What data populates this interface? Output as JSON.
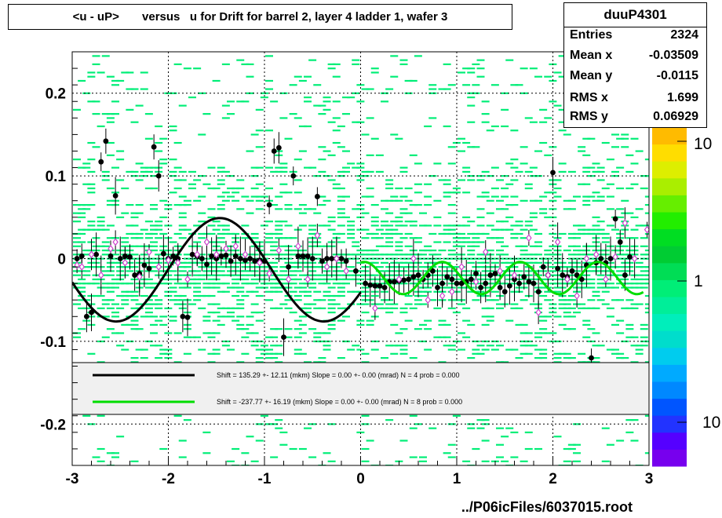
{
  "title": "<u - uP>       versus   u for Drift for barrel 2, layer 4 ladder 1, wafer 3",
  "stats": {
    "name": "duuP4301",
    "rows": [
      {
        "k": "Entries",
        "v": "2324"
      },
      {
        "k": "Mean x",
        "v": "-0.03509"
      },
      {
        "k": "Mean y",
        "v": "-0.0115"
      },
      {
        "k": "RMS x",
        "v": "1.699"
      },
      {
        "k": "RMS y",
        "v": "0.06929"
      }
    ]
  },
  "footer": "../P06icFiles/6037015.root",
  "palette_labels": [
    "10",
    "1",
    "10"
  ],
  "colors": {
    "fit1": "#000000",
    "fit2": "#00dd00",
    "hist_cells": "#00ee77",
    "open_markers": "#cc44cc"
  },
  "chart_data": {
    "type": "scatter",
    "title": "<u - uP>       versus   u for Drift for barrel 2, layer 4 ladder 1, wafer 3",
    "xlim": [
      -3,
      3
    ],
    "ylim": [
      -0.25,
      0.25
    ],
    "x_ticks": [
      "-3",
      "-2",
      "-1",
      "0",
      "1",
      "2",
      "3"
    ],
    "y_ticks": [
      "0.2",
      "0.1",
      "0",
      "-0.1",
      "-0.2"
    ],
    "grid": true,
    "legend": [
      {
        "text": "Shift =   135.29 +- 12.11 (mkm) Slope =     0.00 +- 0.00 (mrad)  N = 4 prob = 0.000",
        "color": "#000000"
      },
      {
        "text": "Shift =   -237.77 +- 16.19 (mkm) Slope =     0.00 +- 0.00 (mrad)  N = 8 prob = 0.000",
        "color": "#00dd00"
      }
    ],
    "profile_black": [
      [
        -2.95,
        0.0
      ],
      [
        -2.9,
        0.003
      ],
      [
        -2.85,
        -0.07
      ],
      [
        -2.8,
        -0.065
      ],
      [
        -2.75,
        0.005
      ],
      [
        -2.7,
        0.117
      ],
      [
        -2.65,
        0.142
      ],
      [
        -2.6,
        0.003
      ],
      [
        -2.55,
        0.076
      ],
      [
        -2.5,
        0.0
      ],
      [
        -2.45,
        0.003
      ],
      [
        -2.4,
        0.002
      ],
      [
        -2.35,
        -0.02
      ],
      [
        -2.3,
        -0.018
      ],
      [
        -2.25,
        -0.008
      ],
      [
        -2.2,
        -0.012
      ],
      [
        -2.15,
        0.135
      ],
      [
        -2.1,
        0.1
      ],
      [
        -2.05,
        0.006
      ],
      [
        -2.0,
        0.0
      ],
      [
        -1.95,
        0.003
      ],
      [
        -1.9,
        0.0
      ],
      [
        -1.85,
        -0.07
      ],
      [
        -1.8,
        -0.071
      ],
      [
        -1.75,
        0.005
      ],
      [
        -1.7,
        0.003
      ],
      [
        -1.65,
        0.0
      ],
      [
        -1.6,
        -0.007
      ],
      [
        -1.55,
        0.003
      ],
      [
        -1.5,
        0.0
      ],
      [
        -1.45,
        0.003
      ],
      [
        -1.4,
        0.004
      ],
      [
        -1.35,
        -0.003
      ],
      [
        -1.3,
        0.003
      ],
      [
        -1.25,
        0.0
      ],
      [
        -1.2,
        -0.002
      ],
      [
        -1.15,
        0.0
      ],
      [
        -1.1,
        -0.003
      ],
      [
        -1.05,
        -0.002
      ],
      [
        -1.0,
        -0.003
      ],
      [
        -0.95,
        0.065
      ],
      [
        -0.9,
        0.13
      ],
      [
        -0.85,
        0.134
      ],
      [
        -0.8,
        -0.095
      ],
      [
        -0.75,
        -0.01
      ],
      [
        -0.7,
        0.1
      ],
      [
        -0.65,
        0.003
      ],
      [
        -0.6,
        0.003
      ],
      [
        -0.55,
        0.003
      ],
      [
        -0.5,
        0.0
      ],
      [
        -0.45,
        0.075
      ],
      [
        -0.4,
        -0.003
      ],
      [
        -0.35,
        0.0
      ],
      [
        -0.3,
        0.0
      ],
      [
        -0.25,
        0.0
      ],
      [
        -0.2,
        0.0
      ],
      [
        -0.15,
        -0.003
      ],
      [
        -0.05,
        -0.015
      ],
      [
        0.05,
        -0.03
      ],
      [
        0.1,
        -0.032
      ],
      [
        0.15,
        -0.033
      ],
      [
        0.2,
        -0.033
      ],
      [
        0.25,
        -0.035
      ],
      [
        0.3,
        -0.028
      ],
      [
        0.35,
        -0.028
      ],
      [
        0.4,
        -0.027
      ],
      [
        0.45,
        -0.026
      ],
      [
        0.5,
        -0.025
      ],
      [
        0.55,
        -0.022
      ],
      [
        0.6,
        -0.02
      ],
      [
        0.65,
        -0.025
      ],
      [
        0.7,
        -0.02
      ],
      [
        0.75,
        -0.015
      ],
      [
        0.8,
        -0.035
      ],
      [
        0.85,
        -0.03
      ],
      [
        0.9,
        -0.022
      ],
      [
        0.95,
        -0.025
      ],
      [
        1.0,
        -0.03
      ],
      [
        1.05,
        -0.03
      ],
      [
        1.1,
        -0.028
      ],
      [
        1.15,
        -0.025
      ],
      [
        1.2,
        -0.018
      ],
      [
        1.25,
        -0.035
      ],
      [
        1.3,
        -0.03
      ],
      [
        1.35,
        -0.02
      ],
      [
        1.4,
        -0.018
      ],
      [
        1.45,
        -0.035
      ],
      [
        1.5,
        -0.04
      ],
      [
        1.55,
        -0.033
      ],
      [
        1.6,
        -0.025
      ],
      [
        1.65,
        -0.03
      ],
      [
        1.7,
        -0.022
      ],
      [
        1.75,
        -0.028
      ],
      [
        1.8,
        -0.03
      ],
      [
        1.85,
        -0.04
      ],
      [
        1.9,
        -0.01
      ],
      [
        1.95,
        -0.02
      ],
      [
        2.0,
        0.104
      ],
      [
        2.05,
        -0.012
      ],
      [
        2.1,
        -0.02
      ],
      [
        2.15,
        -0.022
      ],
      [
        2.2,
        -0.015
      ],
      [
        2.25,
        -0.02
      ],
      [
        2.3,
        -0.025
      ],
      [
        2.35,
        -0.008
      ],
      [
        2.4,
        -0.12
      ],
      [
        2.45,
        -0.005
      ],
      [
        2.5,
        0.0
      ],
      [
        2.55,
        -0.005
      ],
      [
        2.6,
        0.0
      ],
      [
        2.65,
        0.048
      ],
      [
        2.7,
        0.02
      ],
      [
        2.75,
        -0.02
      ],
      [
        2.8,
        0.002
      ]
    ],
    "profile_open": [
      [
        -2.95,
        -0.008
      ],
      [
        -2.9,
        -0.01
      ],
      [
        -2.8,
        0.005
      ],
      [
        -2.7,
        -0.02
      ],
      [
        -2.6,
        0.012
      ],
      [
        -2.55,
        0.02
      ],
      [
        -2.45,
        -0.005
      ],
      [
        -2.3,
        -0.022
      ],
      [
        -2.2,
        0.008
      ],
      [
        -2.1,
        -0.01
      ],
      [
        -2.0,
        -0.002
      ],
      [
        -1.9,
        -0.005
      ],
      [
        -1.8,
        -0.025
      ],
      [
        -1.7,
        0.005
      ],
      [
        -1.6,
        0.02
      ],
      [
        -1.5,
        0.005
      ],
      [
        -1.4,
        0.012
      ],
      [
        -1.3,
        0.015
      ],
      [
        -1.2,
        0.005
      ],
      [
        -1.05,
        -0.005
      ],
      [
        -0.95,
        -0.018
      ],
      [
        -0.85,
        0.01
      ],
      [
        -0.75,
        -0.025
      ],
      [
        -0.65,
        0.015
      ],
      [
        -0.55,
        -0.025
      ],
      [
        -0.45,
        0.028
      ],
      [
        -0.35,
        -0.01
      ],
      [
        -0.25,
        0.0
      ],
      [
        -0.15,
        -0.015
      ],
      [
        0.15,
        -0.06
      ],
      [
        0.4,
        -0.025
      ],
      [
        0.55,
        0.0
      ],
      [
        0.7,
        -0.05
      ],
      [
        0.85,
        -0.045
      ],
      [
        0.95,
        -0.04
      ],
      [
        1.05,
        -0.01
      ],
      [
        1.2,
        -0.028
      ],
      [
        1.3,
        0.008
      ],
      [
        1.45,
        -0.015
      ],
      [
        1.6,
        -0.02
      ],
      [
        1.75,
        0.025
      ],
      [
        1.85,
        -0.065
      ],
      [
        1.95,
        -0.02
      ],
      [
        2.05,
        0.02
      ],
      [
        2.15,
        -0.025
      ],
      [
        2.25,
        -0.045
      ],
      [
        2.35,
        0.0
      ],
      [
        2.45,
        0.005
      ],
      [
        2.55,
        -0.025
      ],
      [
        2.65,
        0.002
      ],
      [
        2.75,
        0.043
      ],
      [
        2.85,
        0.0
      ],
      [
        2.98,
        0.035
      ]
    ]
  }
}
